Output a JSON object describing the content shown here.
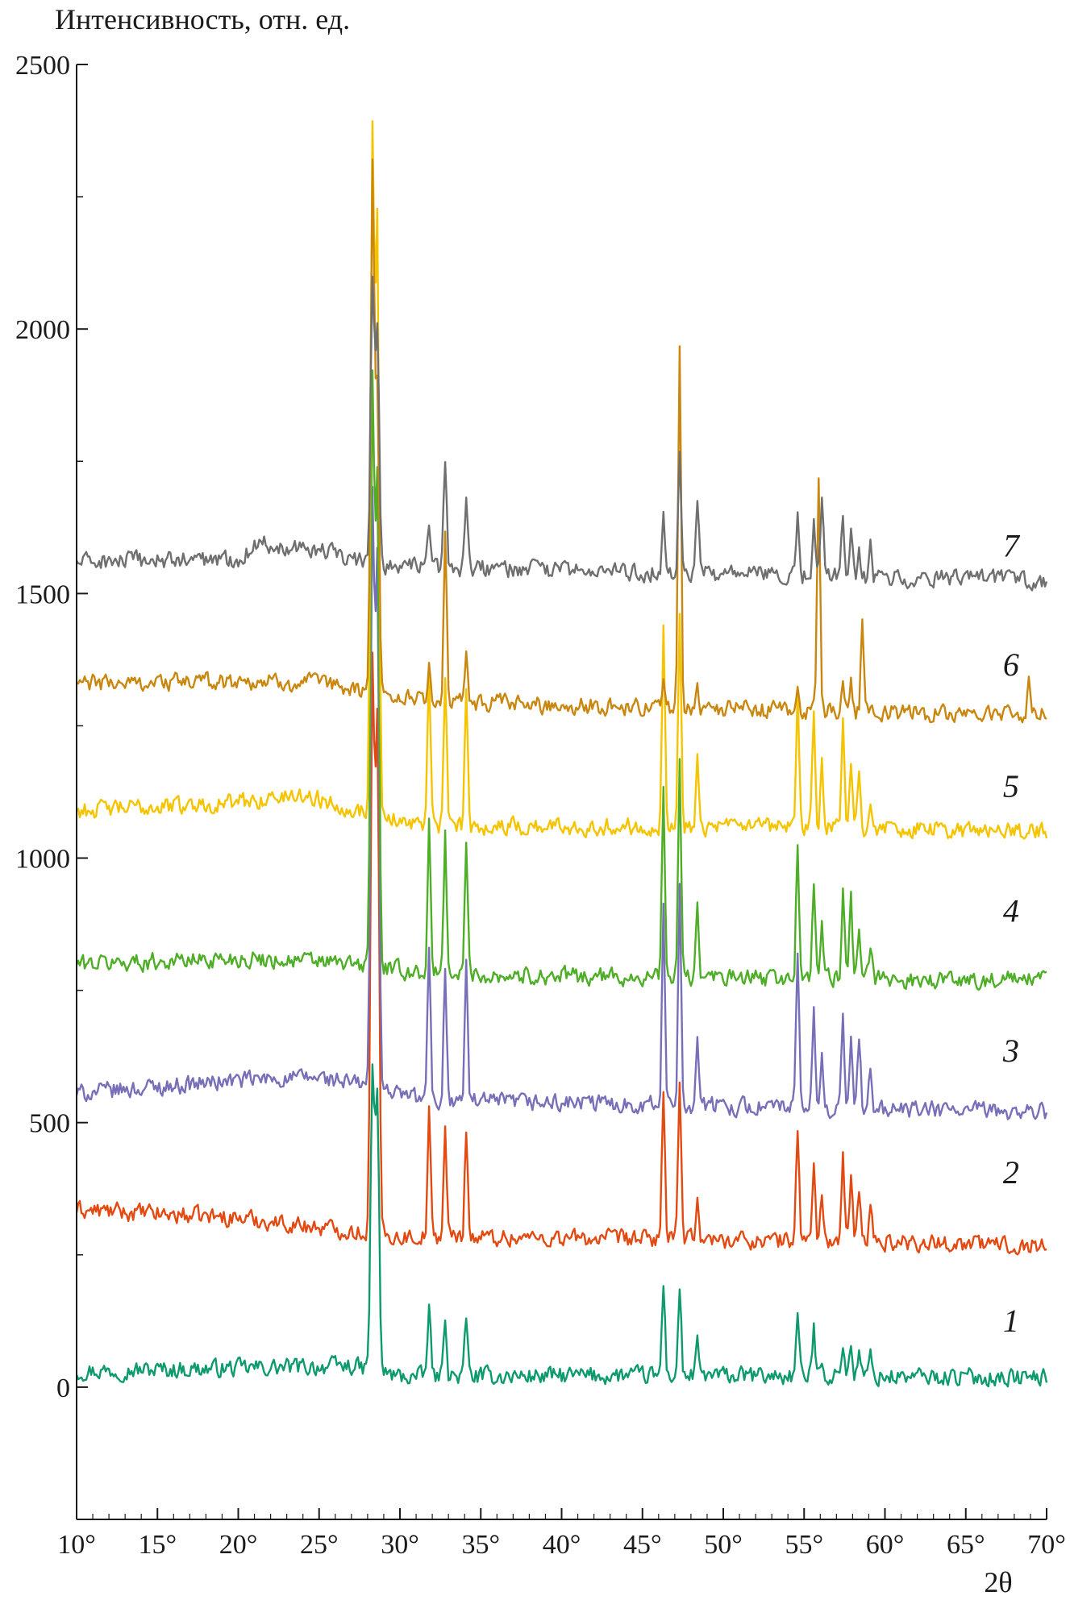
{
  "chart_data": {
    "type": "line",
    "title": "",
    "xlabel": "2θ",
    "ylabel": "Интенсивность, отн. ед.",
    "xlim": [
      10,
      70
    ],
    "ylim": [
      -250,
      2500
    ],
    "x_ticks": [
      10,
      15,
      20,
      25,
      30,
      35,
      40,
      45,
      50,
      55,
      60,
      65,
      70
    ],
    "x_tick_labels": [
      "10°",
      "15°",
      "20°",
      "25°",
      "30°",
      "35°",
      "40°",
      "45°",
      "50°",
      "55°",
      "60°",
      "65°",
      "70°"
    ],
    "y_ticks": [
      0,
      500,
      1000,
      1500,
      2000,
      2500
    ],
    "y_tick_labels": [
      "0",
      "500",
      "1000",
      "1500",
      "2000",
      "2500"
    ],
    "grid": false,
    "legend": "inline-right",
    "peaks_2theta": [
      28.3,
      28.6,
      31.8,
      32.8,
      34.1,
      46.3,
      47.3,
      48.4,
      54.6,
      55.6,
      56.1,
      57.4,
      57.9,
      58.4,
      59.1
    ],
    "series": [
      {
        "name": "1",
        "color": "#0e9a6e",
        "baseline": [
          [
            10,
            30
          ],
          [
            27,
            40
          ],
          [
            30,
            20
          ],
          [
            45,
            22
          ],
          [
            60,
            20
          ],
          [
            70,
            18
          ]
        ],
        "peaks": [
          [
            28.3,
            600
          ],
          [
            28.6,
            550
          ],
          [
            31.8,
            160
          ],
          [
            32.8,
            140
          ],
          [
            34.1,
            130
          ],
          [
            46.3,
            200
          ],
          [
            47.3,
            190
          ],
          [
            48.4,
            80
          ],
          [
            54.6,
            140
          ],
          [
            55.6,
            110
          ],
          [
            56.1,
            60
          ],
          [
            57.4,
            90
          ],
          [
            57.9,
            80
          ],
          [
            58.4,
            70
          ],
          [
            59.1,
            60
          ]
        ]
      },
      {
        "name": "2",
        "color": "#e24a12",
        "baseline": [
          [
            10,
            335
          ],
          [
            20,
            320
          ],
          [
            27,
            295
          ],
          [
            30,
            285
          ],
          [
            45,
            280
          ],
          [
            60,
            275
          ],
          [
            70,
            268
          ]
        ],
        "peaks": [
          [
            28.3,
            1360
          ],
          [
            28.6,
            1250
          ],
          [
            31.8,
            520
          ],
          [
            32.8,
            490
          ],
          [
            34.1,
            495
          ],
          [
            46.3,
            570
          ],
          [
            47.3,
            575
          ],
          [
            48.4,
            370
          ],
          [
            54.6,
            495
          ],
          [
            55.6,
            430
          ],
          [
            56.1,
            360
          ],
          [
            57.4,
            430
          ],
          [
            57.9,
            390
          ],
          [
            58.4,
            380
          ],
          [
            59.1,
            340
          ]
        ]
      },
      {
        "name": "3",
        "color": "#7770b8",
        "baseline": [
          [
            10,
            555
          ],
          [
            20,
            580
          ],
          [
            25,
            585
          ],
          [
            28,
            570
          ],
          [
            32,
            540
          ],
          [
            45,
            535
          ],
          [
            60,
            525
          ],
          [
            70,
            520
          ]
        ],
        "peaks": [
          [
            28.3,
            1660
          ],
          [
            28.6,
            1550
          ],
          [
            31.8,
            830
          ],
          [
            32.8,
            800
          ],
          [
            34.1,
            800
          ],
          [
            46.3,
            900
          ],
          [
            47.3,
            950
          ],
          [
            48.4,
            660
          ],
          [
            54.6,
            810
          ],
          [
            55.6,
            710
          ],
          [
            56.1,
            620
          ],
          [
            57.4,
            690
          ],
          [
            57.9,
            670
          ],
          [
            58.4,
            650
          ],
          [
            59.1,
            600
          ]
        ]
      },
      {
        "name": "4",
        "color": "#4fae28",
        "baseline": [
          [
            10,
            800
          ],
          [
            20,
            810
          ],
          [
            25,
            805
          ],
          [
            28,
            795
          ],
          [
            32,
            780
          ],
          [
            45,
            775
          ],
          [
            60,
            770
          ],
          [
            70,
            770
          ]
        ],
        "peaks": [
          [
            28.3,
            1900
          ],
          [
            28.6,
            1700
          ],
          [
            31.8,
            1070
          ],
          [
            32.8,
            1050
          ],
          [
            34.1,
            1030
          ],
          [
            46.3,
            1120
          ],
          [
            47.3,
            1180
          ],
          [
            48.4,
            900
          ],
          [
            54.6,
            1030
          ],
          [
            55.6,
            960
          ],
          [
            56.1,
            890
          ],
          [
            57.4,
            940
          ],
          [
            57.9,
            920
          ],
          [
            58.4,
            880
          ],
          [
            59.1,
            840
          ]
        ]
      },
      {
        "name": "5",
        "color": "#f5c400",
        "baseline": [
          [
            10,
            1090
          ],
          [
            20,
            1105
          ],
          [
            24,
            1120
          ],
          [
            28,
            1085
          ],
          [
            32,
            1060
          ],
          [
            45,
            1060
          ],
          [
            60,
            1055
          ],
          [
            70,
            1050
          ]
        ],
        "peaks": [
          [
            28.3,
            2360
          ],
          [
            28.6,
            2180
          ],
          [
            31.8,
            1360
          ],
          [
            32.8,
            1350
          ],
          [
            34.1,
            1330
          ],
          [
            46.3,
            1440
          ],
          [
            47.3,
            1450
          ],
          [
            48.4,
            1210
          ],
          [
            54.6,
            1320
          ],
          [
            55.6,
            1270
          ],
          [
            56.1,
            1180
          ],
          [
            57.4,
            1260
          ],
          [
            57.9,
            1180
          ],
          [
            58.4,
            1160
          ],
          [
            59.1,
            1120
          ]
        ]
      },
      {
        "name": "6",
        "color": "#c9870f",
        "baseline": [
          [
            10,
            1330
          ],
          [
            20,
            1335
          ],
          [
            25,
            1330
          ],
          [
            28,
            1315
          ],
          [
            32,
            1295
          ],
          [
            45,
            1285
          ],
          [
            60,
            1275
          ],
          [
            70,
            1270
          ]
        ],
        "peaks": [
          [
            28.3,
            2290
          ],
          [
            28.6,
            1900
          ],
          [
            31.8,
            1370
          ],
          [
            32.8,
            1610
          ],
          [
            34.1,
            1380
          ],
          [
            46.3,
            1340
          ],
          [
            47.3,
            1980
          ],
          [
            48.4,
            1330
          ],
          [
            54.6,
            1330
          ],
          [
            55.9,
            1730
          ],
          [
            57.4,
            1330
          ],
          [
            57.9,
            1330
          ],
          [
            58.6,
            1440
          ],
          [
            68.9,
            1330
          ]
        ]
      },
      {
        "name": "7",
        "color": "#6f6f6f",
        "baseline": [
          [
            10,
            1560
          ],
          [
            20,
            1565
          ],
          [
            21.4,
            1600
          ],
          [
            22,
            1590
          ],
          [
            24,
            1590
          ],
          [
            26,
            1575
          ],
          [
            28,
            1555
          ],
          [
            32,
            1550
          ],
          [
            45,
            1540
          ],
          [
            60,
            1530
          ],
          [
            70,
            1525
          ]
        ],
        "peaks": [
          [
            28.3,
            2090
          ],
          [
            28.6,
            2010
          ],
          [
            31.8,
            1640
          ],
          [
            32.8,
            1750
          ],
          [
            34.1,
            1680
          ],
          [
            46.3,
            1660
          ],
          [
            47.3,
            1780
          ],
          [
            48.4,
            1660
          ],
          [
            54.6,
            1640
          ],
          [
            55.6,
            1650
          ],
          [
            56.1,
            1680
          ],
          [
            57.4,
            1640
          ],
          [
            57.9,
            1630
          ],
          [
            58.4,
            1590
          ],
          [
            59.1,
            1600
          ]
        ]
      }
    ],
    "curve_labels": [
      {
        "text": "1",
        "x": 67.8,
        "y": 105
      },
      {
        "text": "2",
        "x": 67.8,
        "y": 385
      },
      {
        "text": "3",
        "x": 67.8,
        "y": 615
      },
      {
        "text": "4",
        "x": 67.8,
        "y": 880
      },
      {
        "text": "5",
        "x": 67.8,
        "y": 1115
      },
      {
        "text": "6",
        "x": 67.8,
        "y": 1345
      },
      {
        "text": "7",
        "x": 67.8,
        "y": 1570
      }
    ]
  }
}
